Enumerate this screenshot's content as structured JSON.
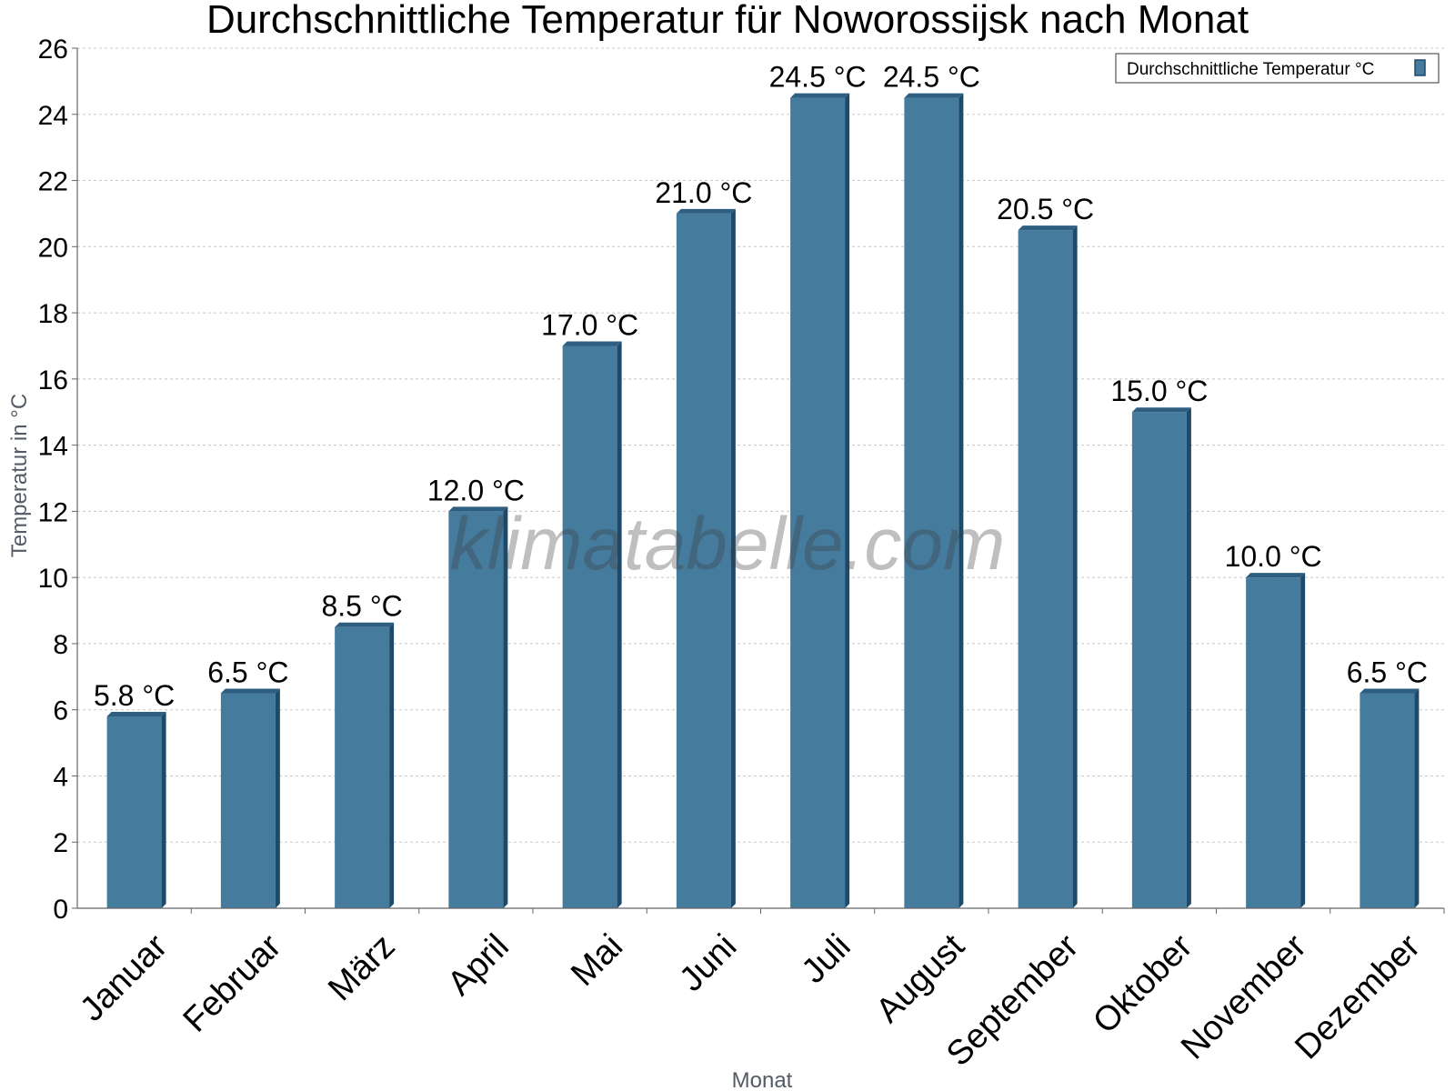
{
  "chart_data": {
    "type": "bar",
    "title": "Durchschnittliche Temperatur für Noworossijsk nach Monat",
    "xlabel": "Monat",
    "ylabel": "Temperatur in °C",
    "categories": [
      "Januar",
      "Februar",
      "März",
      "April",
      "Mai",
      "Juni",
      "Juli",
      "August",
      "September",
      "Oktober",
      "November",
      "Dezember"
    ],
    "series": [
      {
        "name": "Durchschnittliche Temperatur °C",
        "values": [
          5.8,
          6.5,
          8.5,
          12.0,
          17.0,
          21.0,
          24.5,
          24.5,
          20.5,
          15.0,
          10.0,
          6.5
        ],
        "labels": [
          "5.8 °C",
          "6.5 °C",
          "8.5 °C",
          "12.0 °C",
          "17.0 °C",
          "21.0 °C",
          "24.5 °C",
          "24.5 °C",
          "20.5 °C",
          "15.0 °C",
          "10.0 °C",
          "6.5 °C"
        ]
      }
    ],
    "ylim": [
      0,
      26
    ],
    "yticks": [
      "0",
      "2",
      "4",
      "6",
      "8",
      "10",
      "12",
      "14",
      "16",
      "18",
      "20",
      "22",
      "24",
      "26"
    ],
    "grid": true,
    "legend_position": "top-right",
    "watermark": "klimatabelle.com",
    "colors": {
      "bar_front": "#457b9d",
      "bar_side": "#1d4a6a",
      "bar_top": "#2f5f80",
      "grid": "#c8c8c8",
      "axis": "#666666",
      "axis_title": "#555b66"
    }
  }
}
